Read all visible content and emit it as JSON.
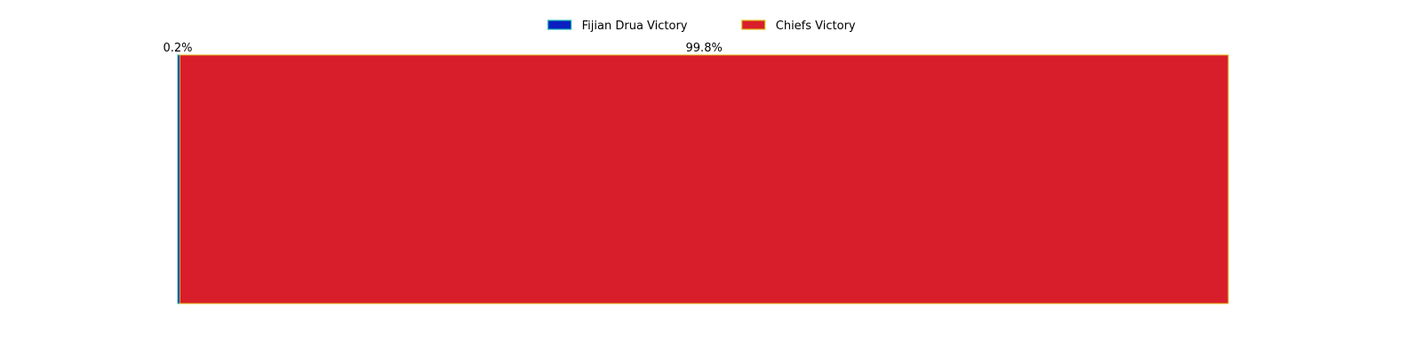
{
  "chart_data": {
    "type": "bar",
    "orientation": "horizontal",
    "stacked": true,
    "title": "",
    "xlabel": "",
    "ylabel": "",
    "xlim": [
      0,
      100
    ],
    "grid": false,
    "legend_position": "top-center",
    "categories": [
      ""
    ],
    "series": [
      {
        "name": "Fijian Drua Victory",
        "values": [
          0.2
        ],
        "label": "0.2%",
        "color": "#0a1fbf",
        "edge_color": "#1ab8b8"
      },
      {
        "name": "Chiefs Victory",
        "values": [
          99.8
        ],
        "label": "99.8%",
        "color": "#d81e2a",
        "edge_color": "#e0b818"
      }
    ]
  }
}
